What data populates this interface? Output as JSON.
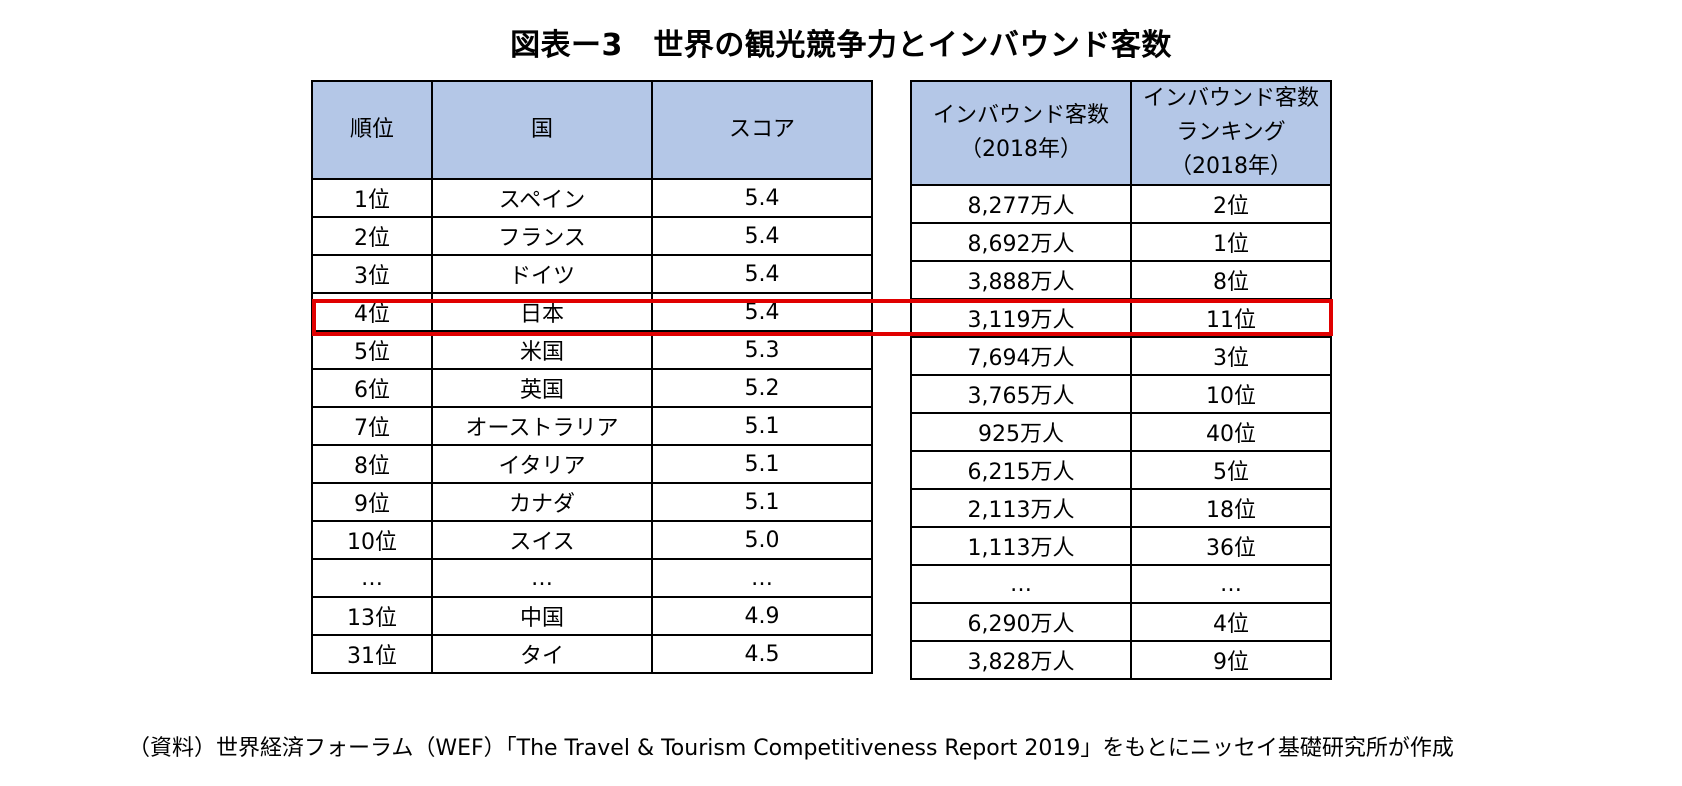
{
  "title": "図表ー3　世界の観光競争力とインバウンド客数",
  "left_table": {
    "headers": [
      "順位",
      "国",
      "スコア"
    ],
    "rows": [
      [
        "1位",
        "スペイン",
        "5.4"
      ],
      [
        "2位",
        "フランス",
        "5.4"
      ],
      [
        "3位",
        "ドイツ",
        "5.4"
      ],
      [
        "4位",
        "日本",
        "5.4"
      ],
      [
        "5位",
        "米国",
        "5.3"
      ],
      [
        "6位",
        "英国",
        "5.2"
      ],
      [
        "7位",
        "オーストラリア",
        "5.1"
      ],
      [
        "8位",
        "イタリア",
        "5.1"
      ],
      [
        "9位",
        "カナダ",
        "5.1"
      ],
      [
        "10位",
        "スイス",
        "5.0"
      ],
      [
        "…",
        "…",
        "…"
      ],
      [
        "13位",
        "中国",
        "4.9"
      ],
      [
        "31位",
        "タイ",
        "4.5"
      ]
    ]
  },
  "right_table": {
    "headers": [
      [
        "インバウンド客数",
        "（2018年）"
      ],
      [
        "インバウンド客数",
        "ランキング",
        "（2018年）"
      ]
    ],
    "rows": [
      [
        "8,277万人",
        "2位"
      ],
      [
        "8,692万人",
        "1位"
      ],
      [
        "3,888万人",
        "8位"
      ],
      [
        "3,119万人",
        "11位"
      ],
      [
        "7,694万人",
        "3位"
      ],
      [
        "3,765万人",
        "10位"
      ],
      [
        "925万人",
        "40位"
      ],
      [
        "6,215万人",
        "5位"
      ],
      [
        "2,113万人",
        "18位"
      ],
      [
        "1,113万人",
        "36位"
      ],
      [
        "…",
        "…"
      ],
      [
        "6,290万人",
        "4位"
      ],
      [
        "3,828万人",
        "9位"
      ]
    ]
  },
  "highlight_color": "#e00000",
  "header_fill": "#b4c7e7",
  "source": "（資料）世界経済フォーラム（WEF）「The Travel & Tourism Competitiveness Report 2019」をもとにニッセイ基礎研究所が作成"
}
